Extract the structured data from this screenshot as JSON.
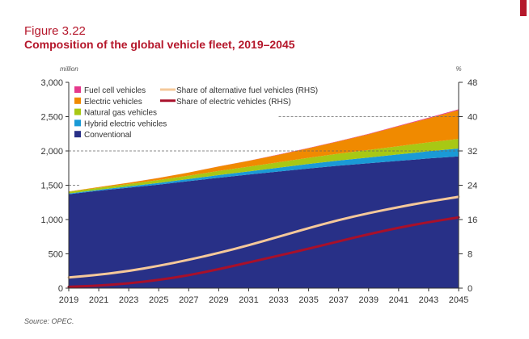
{
  "figure": {
    "number": "Figure 3.22",
    "title": "Composition of the global vehicle fleet, 2019–2045",
    "source": "Source: OPEC."
  },
  "chart_data": {
    "type": "area",
    "title": "Composition of the global vehicle fleet, 2019–2045",
    "left_axis_unit": "million",
    "right_axis_unit": "%",
    "x": [
      2019,
      2021,
      2023,
      2025,
      2027,
      2029,
      2031,
      2033,
      2035,
      2037,
      2039,
      2041,
      2043,
      2045
    ],
    "x_ticks": [
      "2019",
      "2021",
      "2023",
      "2025",
      "2027",
      "2029",
      "2031",
      "2033",
      "2035",
      "2037",
      "2039",
      "2041",
      "2043",
      "2045"
    ],
    "ylim": [
      0,
      3000
    ],
    "y_ticks": [
      "0",
      "500",
      "1,000",
      "1,500",
      "2,000",
      "2,500",
      "3,000"
    ],
    "y2lim": [
      0,
      48
    ],
    "y2_ticks": [
      "0",
      "8",
      "16",
      "24",
      "32",
      "40",
      "48"
    ],
    "stacked_series": [
      {
        "name": "Conventional",
        "color": "#283087",
        "values": [
          1370,
          1420,
          1465,
          1510,
          1560,
          1610,
          1655,
          1700,
          1745,
          1785,
          1820,
          1855,
          1890,
          1920
        ]
      },
      {
        "name": "Hybrid electric vehicles",
        "color": "#1a9ad6",
        "values": [
          10,
          14,
          18,
          24,
          30,
          38,
          46,
          55,
          65,
          75,
          85,
          95,
          105,
          115
        ]
      },
      {
        "name": "Natural gas vehicles",
        "color": "#a8c814",
        "values": [
          25,
          30,
          35,
          42,
          50,
          60,
          70,
          80,
          90,
          100,
          110,
          120,
          130,
          140
        ]
      },
      {
        "name": "Electric vehicles",
        "color": "#f08a00",
        "values": [
          4,
          10,
          18,
          30,
          45,
          65,
          85,
          110,
          140,
          180,
          230,
          290,
          350,
          420
        ]
      },
      {
        "name": "Fuel cell vehicles",
        "color": "#e5398c",
        "values": [
          0,
          0,
          0,
          1,
          1,
          2,
          2,
          3,
          4,
          5,
          6,
          8,
          10,
          12
        ]
      }
    ],
    "line_series": [
      {
        "name": "Share of alternative fuel vehicles (RHS)",
        "color": "#f5c89a",
        "values": [
          2.5,
          3.1,
          4.0,
          5.2,
          6.6,
          8.2,
          10.0,
          12.0,
          14.0,
          15.9,
          17.5,
          18.9,
          20.2,
          21.3
        ]
      },
      {
        "name": "Share of electric vehicles (RHS)",
        "color": "#a8102a",
        "values": [
          0.3,
          0.6,
          1.1,
          1.9,
          3.0,
          4.4,
          6.0,
          7.6,
          9.2,
          10.9,
          12.6,
          14.1,
          15.4,
          16.5
        ]
      }
    ],
    "reference_lines": [
      {
        "value": 1500,
        "x_end": 2019
      },
      {
        "value": 2000,
        "x_end": 2031
      },
      {
        "value": 2500,
        "x_end": 2045
      }
    ]
  }
}
